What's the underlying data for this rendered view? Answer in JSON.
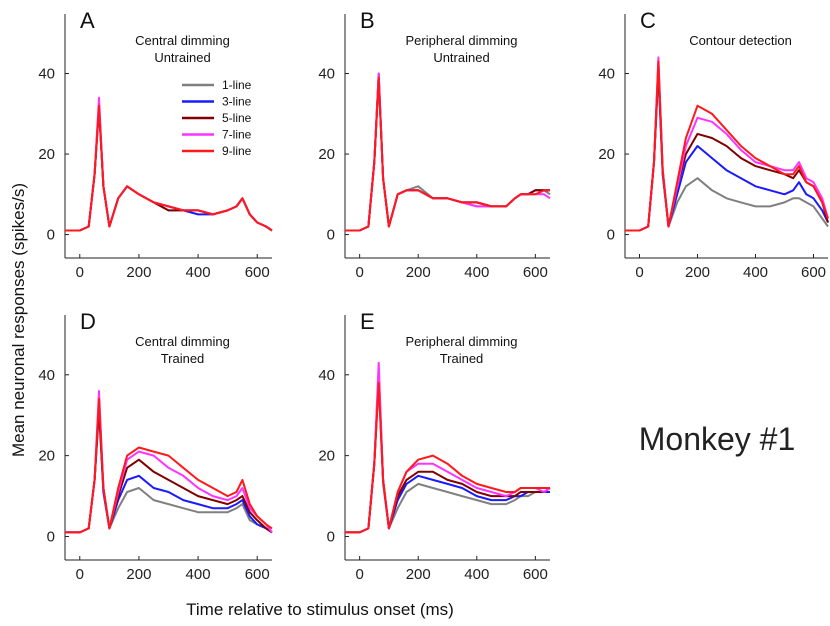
{
  "figure": {
    "ylabel": "Mean neuronal responses (spikes/s)",
    "xlabel": "Time relative to stimulus onset (ms)",
    "annotation": "Monkey #1"
  },
  "chart_data": {
    "type": "line",
    "x_unit": "ms",
    "y_unit": "spikes/s",
    "xlim": [
      -50,
      650
    ],
    "ylim": [
      -2,
      55
    ],
    "xticks": [
      0,
      200,
      400,
      600
    ],
    "yticks": [
      0,
      20,
      40
    ],
    "grid": false,
    "legend": {
      "placement": "top-right of panel A",
      "entries": [
        {
          "label": "1-line",
          "color": "#808080"
        },
        {
          "label": "3-line",
          "color": "#1a1aff"
        },
        {
          "label": "5-line",
          "color": "#800000"
        },
        {
          "label": "7-line",
          "color": "#ff33ff"
        },
        {
          "label": "9-line",
          "color": "#ff1a1a"
        }
      ]
    },
    "x": [
      -50,
      0,
      30,
      50,
      65,
      80,
      100,
      130,
      160,
      200,
      250,
      300,
      350,
      400,
      450,
      500,
      530,
      550,
      575,
      600,
      630,
      650
    ],
    "panels": [
      {
        "letter": "A",
        "title_line1": "Central dimming",
        "title_line2": "Untrained",
        "series": [
          {
            "name": "1-line",
            "values": [
              1,
              1,
              2,
              15,
              31,
              12,
              2,
              9,
              12,
              10,
              8,
              6,
              6,
              6,
              5,
              6,
              7,
              9,
              5,
              3,
              2,
              1
            ]
          },
          {
            "name": "3-line",
            "values": [
              1,
              1,
              2,
              15,
              32,
              12,
              2,
              9,
              12,
              10,
              8,
              7,
              6,
              5,
              5,
              6,
              7,
              9,
              5,
              3,
              2,
              1
            ]
          },
          {
            "name": "5-line",
            "values": [
              1,
              1,
              2,
              15,
              32,
              12,
              2,
              9,
              12,
              10,
              8,
              6,
              6,
              6,
              5,
              6,
              7,
              9,
              5,
              3,
              2,
              1
            ]
          },
          {
            "name": "7-line",
            "values": [
              1,
              1,
              2,
              15,
              34,
              12,
              2,
              9,
              12,
              10,
              8,
              7,
              6,
              6,
              5,
              6,
              7,
              9,
              5,
              3,
              2,
              1
            ]
          },
          {
            "name": "9-line",
            "values": [
              1,
              1,
              2,
              15,
              32,
              12,
              2,
              9,
              12,
              10,
              8,
              7,
              6,
              6,
              5,
              6,
              7,
              9,
              5,
              3,
              2,
              1
            ]
          }
        ]
      },
      {
        "letter": "B",
        "title_line1": "Peripheral dimming",
        "title_line2": "Untrained",
        "series": [
          {
            "name": "1-line",
            "values": [
              1,
              1,
              2,
              18,
              39,
              14,
              2,
              10,
              11,
              12,
              9,
              9,
              8,
              7,
              7,
              7,
              9,
              10,
              10,
              11,
              11,
              10
            ]
          },
          {
            "name": "3-line",
            "values": [
              1,
              1,
              2,
              18,
              40,
              14,
              2,
              10,
              11,
              11,
              9,
              9,
              8,
              8,
              7,
              7,
              9,
              10,
              10,
              11,
              11,
              11
            ]
          },
          {
            "name": "5-line",
            "values": [
              1,
              1,
              2,
              18,
              39,
              14,
              2,
              10,
              11,
              11,
              9,
              9,
              8,
              8,
              7,
              7,
              9,
              10,
              10,
              11,
              11,
              11
            ]
          },
          {
            "name": "7-line",
            "values": [
              1,
              1,
              2,
              18,
              40,
              14,
              2,
              10,
              11,
              11,
              9,
              9,
              8,
              7,
              7,
              7,
              9,
              10,
              10,
              10,
              10,
              9
            ]
          },
          {
            "name": "9-line",
            "values": [
              1,
              1,
              2,
              18,
              39,
              14,
              2,
              10,
              11,
              11,
              9,
              9,
              8,
              8,
              7,
              7,
              9,
              10,
              10,
              10,
              11,
              11
            ]
          }
        ]
      },
      {
        "letter": "C",
        "title_line1": "Contour detection",
        "title_line2": "",
        "series": [
          {
            "name": "1-line",
            "values": [
              1,
              1,
              2,
              18,
              40,
              15,
              2,
              8,
              12,
              14,
              11,
              9,
              8,
              7,
              7,
              8,
              9,
              9,
              8,
              7,
              4,
              2
            ]
          },
          {
            "name": "3-line",
            "values": [
              1,
              1,
              2,
              18,
              41,
              15,
              2,
              10,
              18,
              22,
              19,
              16,
              14,
              12,
              11,
              10,
              11,
              13,
              10,
              9,
              6,
              3
            ]
          },
          {
            "name": "5-line",
            "values": [
              1,
              1,
              2,
              18,
              42,
              16,
              2,
              12,
              20,
              25,
              24,
              22,
              19,
              17,
              16,
              15,
              14,
              16,
              13,
              12,
              8,
              3
            ]
          },
          {
            "name": "7-line",
            "values": [
              1,
              1,
              2,
              18,
              44,
              16,
              2,
              12,
              22,
              29,
              28,
              25,
              21,
              18,
              17,
              16,
              16,
              18,
              14,
              13,
              9,
              4
            ]
          },
          {
            "name": "9-line",
            "values": [
              1,
              1,
              2,
              18,
              43,
              16,
              2,
              13,
              24,
              32,
              30,
              26,
              22,
              19,
              17,
              15,
              15,
              17,
              13,
              12,
              8,
              4
            ]
          }
        ]
      },
      {
        "letter": "D",
        "title_line1": "Central dimming",
        "title_line2": "Trained",
        "series": [
          {
            "name": "1-line",
            "values": [
              1,
              1,
              2,
              14,
              31,
              11,
              2,
              7,
              11,
              12,
              9,
              8,
              7,
              6,
              6,
              6,
              7,
              8,
              4,
              3,
              2,
              1
            ]
          },
          {
            "name": "3-line",
            "values": [
              1,
              1,
              2,
              14,
              32,
              11,
              2,
              9,
              14,
              15,
              12,
              11,
              9,
              8,
              7,
              7,
              8,
              9,
              5,
              3,
              2,
              1
            ]
          },
          {
            "name": "5-line",
            "values": [
              1,
              1,
              2,
              14,
              32,
              12,
              2,
              10,
              17,
              19,
              16,
              14,
              12,
              10,
              9,
              8,
              9,
              10,
              6,
              4,
              2,
              1
            ]
          },
          {
            "name": "7-line",
            "values": [
              1,
              1,
              2,
              14,
              36,
              12,
              2,
              11,
              19,
              21,
              20,
              17,
              15,
              12,
              10,
              9,
              10,
              12,
              7,
              5,
              3,
              1
            ]
          },
          {
            "name": "9-line",
            "values": [
              1,
              1,
              2,
              14,
              34,
              12,
              2,
              12,
              20,
              22,
              21,
              20,
              17,
              14,
              12,
              10,
              11,
              14,
              8,
              5,
              3,
              2
            ]
          }
        ]
      },
      {
        "letter": "E",
        "title_line1": "Peripheral dimming",
        "title_line2": "Trained",
        "series": [
          {
            "name": "1-line",
            "values": [
              1,
              1,
              2,
              18,
              38,
              13,
              2,
              7,
              11,
              13,
              12,
              11,
              10,
              9,
              8,
              8,
              9,
              10,
              10,
              11,
              11,
              11
            ]
          },
          {
            "name": "3-line",
            "values": [
              1,
              1,
              2,
              18,
              40,
              14,
              2,
              9,
              13,
              15,
              14,
              13,
              12,
              10,
              9,
              9,
              10,
              10,
              11,
              11,
              11,
              11
            ]
          },
          {
            "name": "5-line",
            "values": [
              1,
              1,
              2,
              18,
              40,
              14,
              2,
              10,
              14,
              16,
              16,
              14,
              13,
              11,
              10,
              10,
              10,
              11,
              11,
              11,
              11,
              12
            ]
          },
          {
            "name": "7-line",
            "values": [
              1,
              1,
              2,
              18,
              43,
              14,
              2,
              11,
              16,
              18,
              18,
              16,
              14,
              12,
              11,
              10,
              11,
              12,
              12,
              12,
              11,
              12
            ]
          },
          {
            "name": "9-line",
            "values": [
              1,
              1,
              2,
              18,
              38,
              14,
              2,
              11,
              16,
              19,
              20,
              18,
              15,
              13,
              12,
              11,
              11,
              12,
              12,
              12,
              12,
              12
            ]
          }
        ]
      }
    ]
  }
}
